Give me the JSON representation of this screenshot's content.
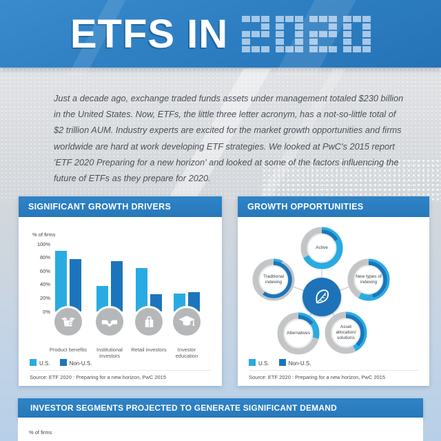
{
  "header": {
    "title_prefix": "ETFS IN",
    "year": "2020"
  },
  "intro": {
    "text": "Just a decade ago, exchange traded funds assets under management totaled $230 billion in the United States. Now, ETFs, the little three letter acronym, has a not-so-little total of $2 trillion AUM. Industry experts are excited for the market growth opportunities and firms worldwide are hard at work developing ETF strategies. We looked at PwC's 2015 report 'ETF 2020 Preparing for a new horizon' and looked at some of the factors influencing the future of ETFs as they prepare for 2020."
  },
  "drivers_panel": {
    "title": "SIGNIFICANT GROWTH DRIVERS",
    "axis_label": "% of firms",
    "legend": [
      {
        "label": "U.S."
      },
      {
        "label": "Non-U.S."
      }
    ],
    "source": "Source: ETF 2020 : Preparing for a new horizon, PwC 2015"
  },
  "opportunities_panel": {
    "title": "GROWTH OPPORTUNITIES",
    "legend": [
      {
        "label": "U.S."
      },
      {
        "label": "Non-U.S."
      }
    ],
    "source": "Source: ETF 2020 : Preparing for a new horizon, PwC 2015"
  },
  "segments_panel": {
    "title": "INVESTOR SEGMENTS PROJECTED TO GENERATE SIGNIFICANT DEMAND",
    "axis_label": "% of firms"
  },
  "colors": {
    "us": "#29ABE2",
    "non_us": "#1C75BC",
    "banner_blue": "#2E80C3",
    "ring_gray": "#C3C5C7"
  },
  "chart_data": [
    {
      "type": "bar",
      "title": "SIGNIFICANT GROWTH DRIVERS",
      "ylabel": "% of firms",
      "ylim": [
        0,
        100
      ],
      "y_ticks": [
        "100%",
        "80%",
        "60%",
        "40%",
        "20%",
        "0%"
      ],
      "categories": [
        "Product benefits",
        "Institutional investors",
        "Retail investors",
        "Investor education"
      ],
      "icons": [
        "open-box-icon",
        "handshake-icon",
        "shopping-bag-icon",
        "graduation-cap-icon"
      ],
      "series": [
        {
          "name": "U.S.",
          "color": "#29ABE2",
          "values": [
            90,
            38,
            64,
            27
          ]
        },
        {
          "name": "Non-U.S.",
          "color": "#1C75BC",
          "values": [
            78,
            75,
            26,
            29
          ]
        }
      ],
      "legend_position": "bottom",
      "source": "Source: ETF 2020 : Preparing for a new horizon, PwC 2015"
    },
    {
      "type": "donut",
      "title": "GROWTH OPPORTUNITIES",
      "unit": "percent of ring, clockwise from top; U.S. outer band, Non-U.S. inner band",
      "rings": [
        {
          "label": "Active",
          "us": 67,
          "non_us": 17
        },
        {
          "label": "Traditional indexing",
          "us": 7,
          "non_us": 60
        },
        {
          "label": "New types of indexing",
          "us": 58,
          "non_us": 46
        },
        {
          "label": "Alternatives",
          "us": 29,
          "non_us": 15
        },
        {
          "label": "Asset allocation/ solutions",
          "us": 42,
          "non_us": 38
        }
      ],
      "legend": [
        "U.S.",
        "Non-U.S."
      ],
      "source": "Source: ETF 2020 : Preparing for a new horizon, PwC 2015"
    }
  ]
}
